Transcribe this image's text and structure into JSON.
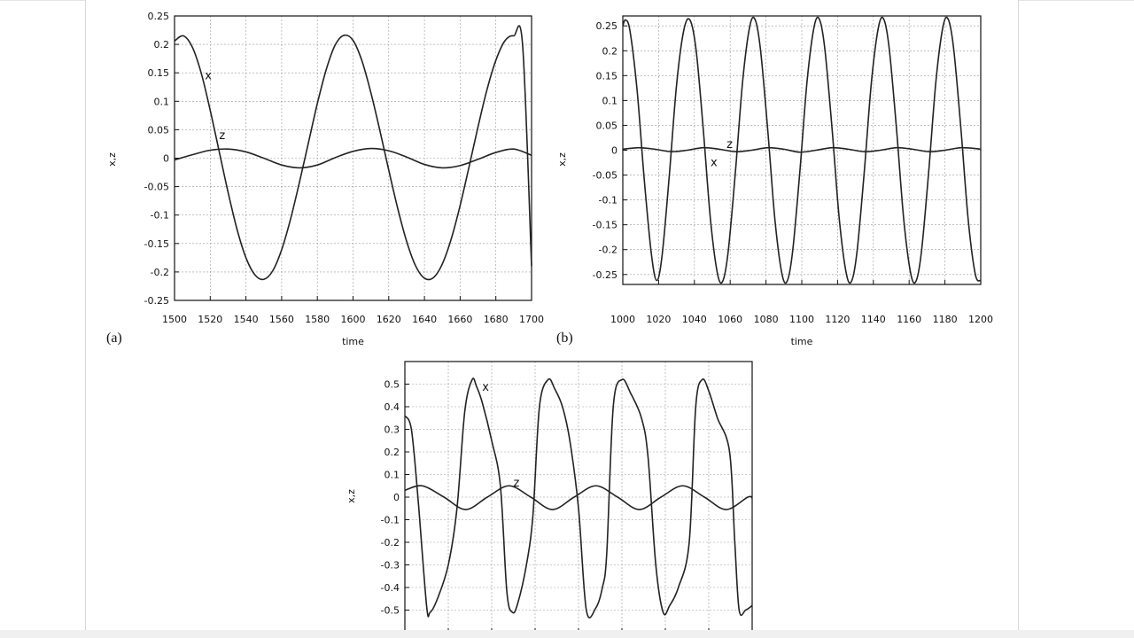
{
  "chart_data": [
    {
      "type": "line",
      "panel_label": "(a)",
      "xlabel": "time",
      "ylabel": "x,z",
      "xlim": [
        1500,
        1700
      ],
      "ylim": [
        -0.25,
        0.25
      ],
      "x_ticks": [
        "1500",
        "1520",
        "1540",
        "1560",
        "1580",
        "1600",
        "1620",
        "1640",
        "1660",
        "1680",
        "1700"
      ],
      "y_ticks": [
        "0.25",
        "0.2",
        "0.15",
        "0.1",
        "0.05",
        "0",
        "-0.05",
        "-0.1",
        "-0.15",
        "-0.2",
        "-0.25"
      ],
      "grid": true,
      "series": [
        {
          "name": "x",
          "x": [
            1500,
            1505,
            1510,
            1515,
            1520,
            1525,
            1530,
            1535,
            1540,
            1545,
            1550,
            1555,
            1560,
            1565,
            1570,
            1575,
            1580,
            1585,
            1590,
            1595,
            1600,
            1605,
            1610,
            1615,
            1620,
            1625,
            1630,
            1635,
            1640,
            1645,
            1650,
            1655,
            1660,
            1665,
            1670,
            1675,
            1680,
            1685,
            1690,
            1695,
            1700
          ],
          "values": [
            0.206,
            0.215,
            0.195,
            0.149,
            0.084,
            0.012,
            -0.06,
            -0.125,
            -0.175,
            -0.205,
            -0.213,
            -0.198,
            -0.161,
            -0.107,
            -0.042,
            0.027,
            0.096,
            0.156,
            0.199,
            0.216,
            0.207,
            0.171,
            0.115,
            0.049,
            -0.021,
            -0.088,
            -0.146,
            -0.189,
            -0.211,
            -0.21,
            -0.186,
            -0.142,
            -0.083,
            -0.015,
            0.055,
            0.12,
            0.172,
            0.206,
            0.215,
            0.198,
            -0.19
          ]
        },
        {
          "name": "z",
          "x": [
            1500,
            1510,
            1520,
            1530,
            1540,
            1550,
            1560,
            1570,
            1580,
            1590,
            1600,
            1610,
            1620,
            1630,
            1640,
            1650,
            1660,
            1670,
            1680,
            1690,
            1700
          ],
          "values": [
            -0.003,
            0.006,
            0.014,
            0.016,
            0.011,
            0.0,
            -0.012,
            -0.017,
            -0.012,
            0.001,
            0.012,
            0.017,
            0.013,
            0.002,
            -0.011,
            -0.017,
            -0.013,
            -0.002,
            0.01,
            0.016,
            0.005
          ]
        }
      ]
    },
    {
      "type": "line",
      "panel_label": "(b)",
      "xlabel": "time",
      "ylabel": "x,z",
      "xlim": [
        1000,
        1200
      ],
      "ylim": [
        -0.27,
        0.27
      ],
      "x_ticks": [
        "1000",
        "1020",
        "1040",
        "1060",
        "1080",
        "1100",
        "1120",
        "1140",
        "1160",
        "1180",
        "1200"
      ],
      "y_ticks": [
        "0.25",
        "0.2",
        "0.15",
        "0.1",
        "0.05",
        "0",
        "-0.05",
        "-0.1",
        "-0.15",
        "-0.2",
        "-0.25"
      ],
      "grid": true,
      "series": [
        {
          "name": "x",
          "x": [
            1000,
            1001.5,
            1004,
            1008,
            1012,
            1016,
            1019,
            1022,
            1026,
            1030,
            1034,
            1037.5,
            1041,
            1045,
            1049,
            1053,
            1056,
            1059,
            1063,
            1067,
            1071,
            1074,
            1077,
            1081,
            1085,
            1089,
            1092,
            1095,
            1099,
            1103,
            1107,
            1110,
            1113,
            1117,
            1121,
            1125,
            1128,
            1131,
            1135,
            1139,
            1143,
            1146,
            1149,
            1153,
            1157,
            1161,
            1164,
            1167,
            1171,
            1175,
            1179,
            1182,
            1185,
            1189,
            1193,
            1197,
            1200
          ],
          "values": [
            0.25,
            0.262,
            0.24,
            0.12,
            -0.06,
            -0.21,
            -0.262,
            -0.21,
            -0.05,
            0.13,
            0.24,
            0.262,
            0.2,
            0.04,
            -0.14,
            -0.25,
            -0.262,
            -0.2,
            -0.04,
            0.14,
            0.25,
            0.262,
            0.2,
            0.04,
            -0.14,
            -0.25,
            -0.262,
            -0.2,
            -0.04,
            0.14,
            0.25,
            0.262,
            0.2,
            0.04,
            -0.14,
            -0.25,
            -0.262,
            -0.2,
            -0.04,
            0.14,
            0.25,
            0.262,
            0.2,
            0.04,
            -0.14,
            -0.25,
            -0.262,
            -0.2,
            -0.04,
            0.14,
            0.25,
            0.262,
            0.2,
            0.04,
            -0.14,
            -0.25,
            -0.262
          ]
        },
        {
          "name": "z",
          "x": [
            1000,
            1009,
            1018,
            1027,
            1036,
            1045,
            1054,
            1063,
            1072,
            1081,
            1090,
            1099,
            1108,
            1117,
            1126,
            1135,
            1144,
            1153,
            1162,
            1171,
            1180,
            1189,
            1198,
            1200
          ],
          "values": [
            0.002,
            0.005,
            0.002,
            -0.003,
            0.0,
            0.005,
            0.002,
            -0.003,
            0.0,
            0.005,
            0.002,
            -0.004,
            0.0,
            0.005,
            0.002,
            -0.003,
            0.0,
            0.005,
            0.002,
            -0.003,
            0.0,
            0.005,
            0.003,
            0.001
          ]
        }
      ]
    },
    {
      "type": "line",
      "panel_label": "",
      "xlabel": "",
      "ylabel": "x,z",
      "xlim": [
        0,
        8
      ],
      "ylim": [
        -0.6,
        0.6
      ],
      "x_ticks": [],
      "y_ticks": [
        "0.5",
        "0.4",
        "0.3",
        "0.2",
        "0.1",
        "0",
        "-0.1",
        "-0.2",
        "-0.3",
        "-0.4",
        "-0.5"
      ],
      "grid": true,
      "series": [
        {
          "name": "x",
          "x": [
            0,
            0.15,
            0.3,
            0.5,
            0.58,
            0.75,
            1.0,
            1.2,
            1.38,
            1.55,
            1.65,
            1.78,
            2.0,
            2.2,
            2.35,
            2.48,
            2.6,
            2.8,
            2.95,
            3.1,
            3.3,
            3.45,
            3.63,
            3.8,
            4.0,
            4.18,
            4.4,
            4.55,
            4.65,
            4.8,
            5.0,
            5.2,
            5.45,
            5.6,
            5.78,
            5.95,
            6.1,
            6.3,
            6.55,
            6.7,
            6.85,
            7.0,
            7.2,
            7.48,
            7.6,
            7.7,
            7.85,
            8.0
          ],
          "values": [
            0.36,
            0.3,
            0.0,
            -0.48,
            -0.51,
            -0.45,
            -0.3,
            -0.05,
            0.38,
            0.52,
            0.49,
            0.42,
            0.25,
            0.05,
            -0.42,
            -0.51,
            -0.47,
            -0.3,
            -0.08,
            0.4,
            0.52,
            0.48,
            0.4,
            0.25,
            -0.05,
            -0.5,
            -0.49,
            -0.4,
            -0.25,
            0.4,
            0.52,
            0.46,
            0.35,
            0.18,
            -0.3,
            -0.51,
            -0.48,
            -0.4,
            -0.2,
            0.4,
            0.52,
            0.47,
            0.35,
            0.2,
            -0.2,
            -0.5,
            -0.5,
            -0.48
          ]
        },
        {
          "name": "z",
          "x": [
            0,
            0.4,
            0.9,
            1.4,
            1.9,
            2.4,
            2.9,
            3.4,
            3.9,
            4.4,
            4.9,
            5.4,
            5.9,
            6.4,
            6.9,
            7.4,
            7.9,
            8.0
          ],
          "values": [
            0.03,
            0.05,
            0.0,
            -0.055,
            0.0,
            0.05,
            0.0,
            -0.055,
            0.0,
            0.05,
            0.0,
            -0.055,
            0.0,
            0.05,
            0.0,
            -0.055,
            0.0,
            -0.005
          ]
        }
      ]
    }
  ]
}
